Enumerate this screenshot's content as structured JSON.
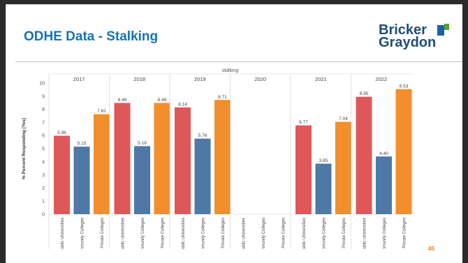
{
  "slide": {
    "title": "ODHE Data - Stalking",
    "logo_line1": "Bricker",
    "logo_line2": "Graydon",
    "page_number": "45"
  },
  "colors": {
    "title": "#1473b8",
    "logo_text": "#1f4e79",
    "logo_mark_blue": "#1f5fa8",
    "logo_mark_green": "#5aa02c",
    "page_number": "#e07b22"
  },
  "chart_data": {
    "type": "bar",
    "title": "stalking",
    "ylabel": "% Percent Responding (Yes)",
    "ylim": [
      0,
      10
    ],
    "yticks": [
      "0",
      "1",
      "2",
      "3",
      "4",
      "5",
      "6",
      "7",
      "8",
      "9",
      "10"
    ],
    "grid": false,
    "legend": "none",
    "categories": [
      "Public Universities",
      "Community Colleges",
      "Private Colleges"
    ],
    "category_colors": [
      "#e05759",
      "#4e79a7",
      "#f28e2b"
    ],
    "panels": [
      {
        "year": "2017",
        "values": [
          5.98,
          5.15,
          7.62
        ],
        "labels": [
          "5.98",
          "5.15",
          "7.62"
        ]
      },
      {
        "year": "2018",
        "values": [
          8.48,
          5.19,
          8.48
        ],
        "labels": [
          "8.48",
          "5.19",
          "8.48"
        ]
      },
      {
        "year": "2019",
        "values": [
          8.14,
          5.76,
          8.71
        ],
        "labels": [
          "8.14",
          "5.76",
          "8.71"
        ]
      },
      {
        "year": "2020",
        "values": [
          null,
          null,
          null
        ],
        "labels": [
          "",
          "",
          ""
        ]
      },
      {
        "year": "2021",
        "values": [
          6.77,
          3.85,
          7.04
        ],
        "labels": [
          "6.77",
          "3.85",
          "7.04"
        ]
      },
      {
        "year": "2022",
        "values": [
          8.95,
          4.4,
          9.53
        ],
        "labels": [
          "8.95",
          "4.40",
          "9.53"
        ]
      }
    ]
  }
}
